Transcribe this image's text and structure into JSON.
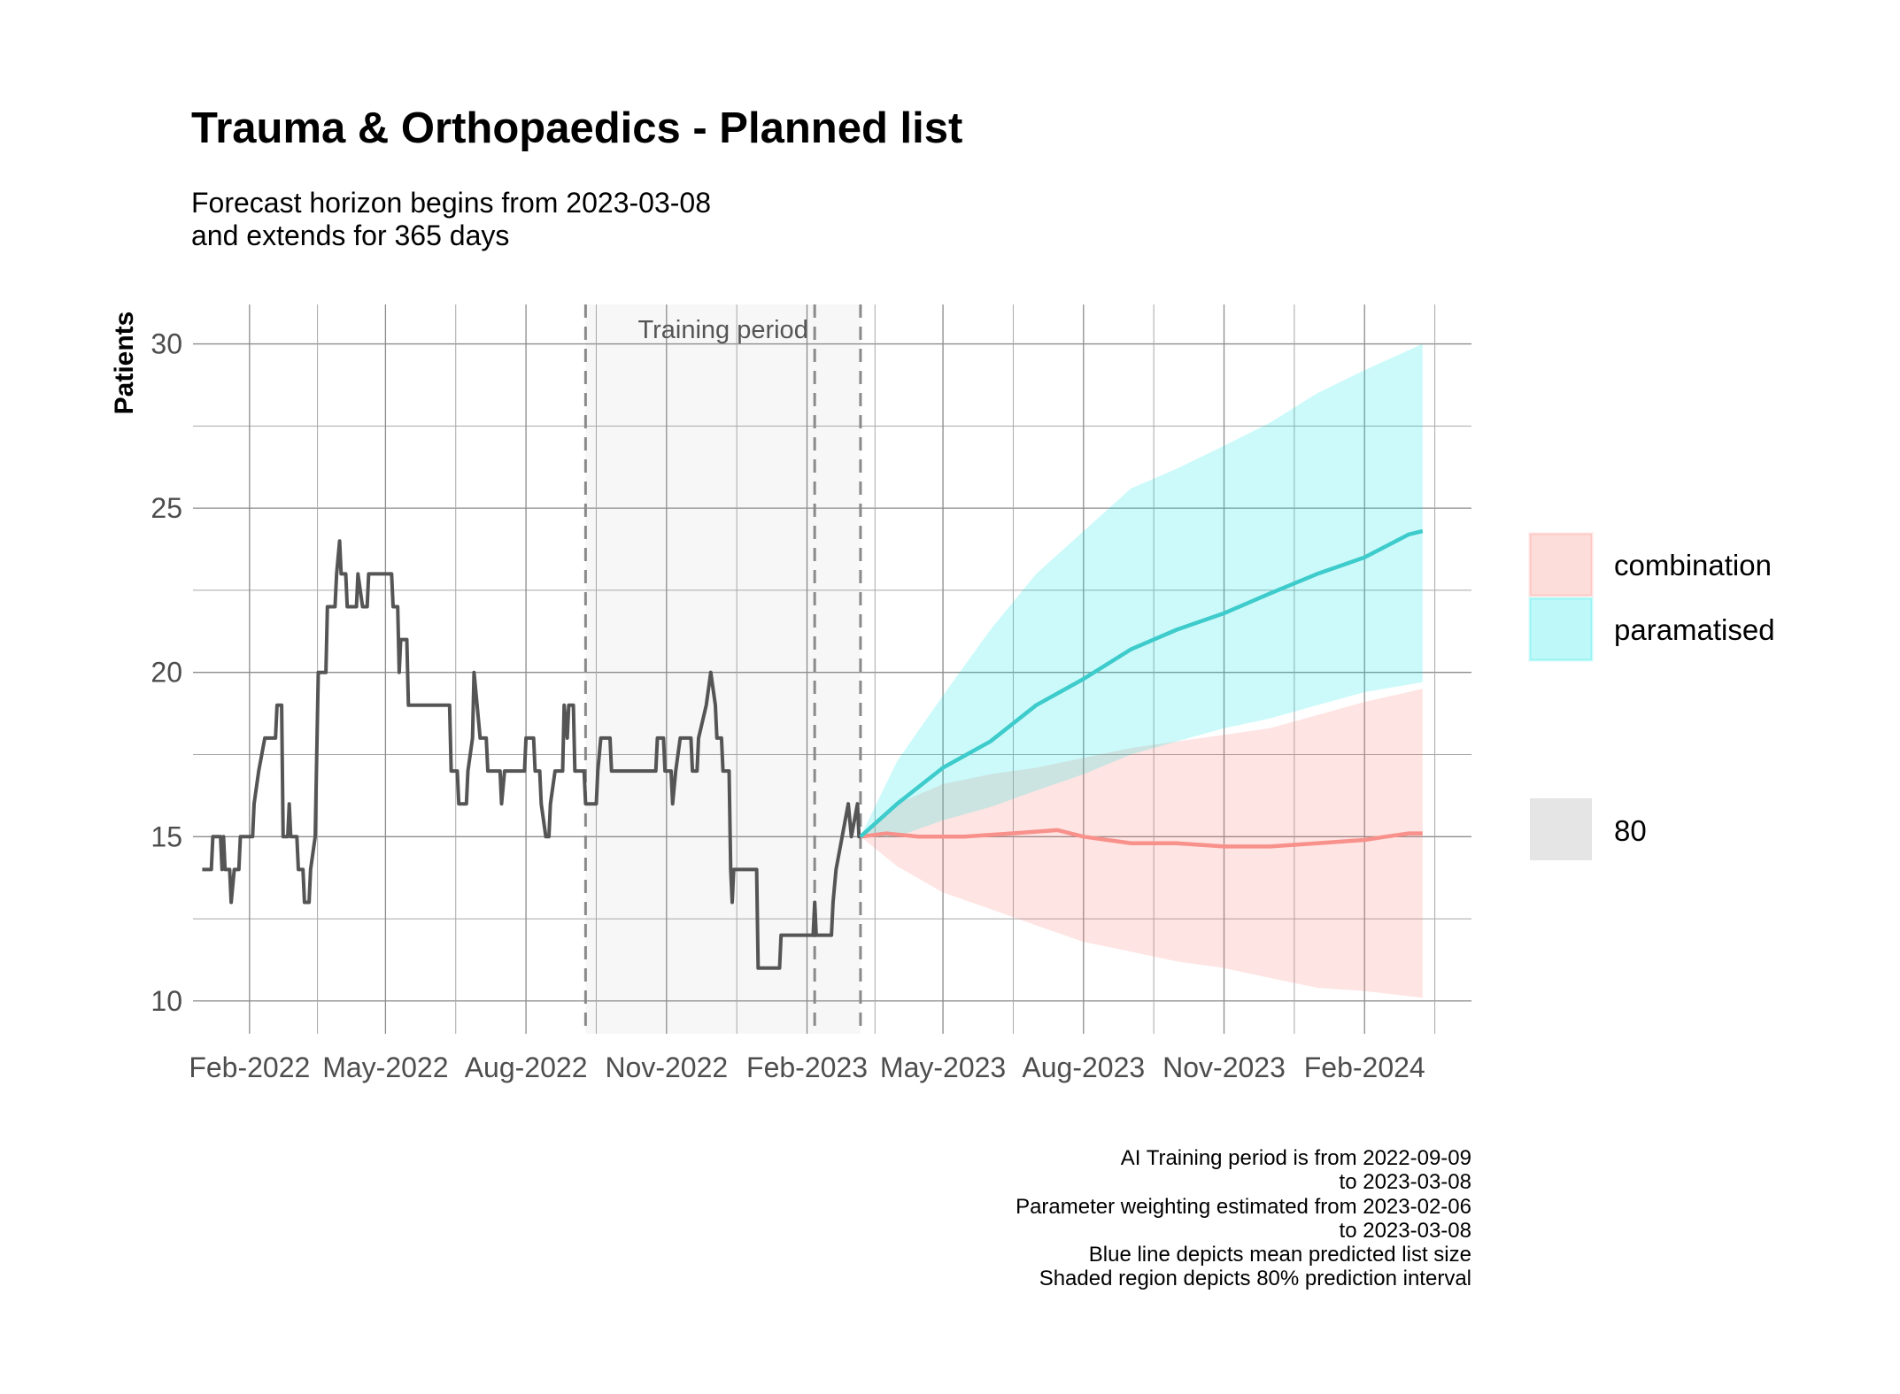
{
  "chart_data": {
    "type": "line",
    "title": "Trauma & Orthopaedics - Planned list",
    "subtitle_lines": [
      "Forecast horizon begins from 2023-03-08",
      "and extends for 365 days"
    ],
    "xlabel": "",
    "ylabel": "Patients",
    "ylim": [
      9,
      31.2
    ],
    "xlim": [
      "2021-12-26",
      "2024-04-11"
    ],
    "y_ticks": [
      10,
      15,
      20,
      25,
      30
    ],
    "x_ticks": [
      {
        "date": "2022-02-01",
        "label": "Feb-2022"
      },
      {
        "date": "2022-05-01",
        "label": "May-2022"
      },
      {
        "date": "2022-08-01",
        "label": "Aug-2022"
      },
      {
        "date": "2022-11-01",
        "label": "Nov-2022"
      },
      {
        "date": "2023-02-01",
        "label": "Feb-2023"
      },
      {
        "date": "2023-05-01",
        "label": "May-2023"
      },
      {
        "date": "2023-08-01",
        "label": "Aug-2023"
      },
      {
        "date": "2023-11-01",
        "label": "Nov-2023"
      },
      {
        "date": "2024-02-01",
        "label": "Feb-2024"
      }
    ],
    "grid": true,
    "training_period": {
      "start": "2022-09-09",
      "end": "2023-03-08",
      "label": "Training period"
    },
    "vlines": [
      "2022-09-09",
      "2023-02-06",
      "2023-03-08"
    ],
    "observed": {
      "color": "#555555",
      "points": [
        [
          "2022-01-01",
          14
        ],
        [
          "2022-01-07",
          14
        ],
        [
          "2022-01-08",
          15
        ],
        [
          "2022-01-13",
          15
        ],
        [
          "2022-01-14",
          14
        ],
        [
          "2022-01-15",
          15
        ],
        [
          "2022-01-16",
          14
        ],
        [
          "2022-01-19",
          14
        ],
        [
          "2022-01-20",
          13
        ],
        [
          "2022-01-22",
          14
        ],
        [
          "2022-01-25",
          14
        ],
        [
          "2022-01-26",
          15
        ],
        [
          "2022-02-03",
          15
        ],
        [
          "2022-02-04",
          16
        ],
        [
          "2022-02-07",
          17
        ],
        [
          "2022-02-11",
          18
        ],
        [
          "2022-02-18",
          18
        ],
        [
          "2022-02-19",
          19
        ],
        [
          "2022-02-22",
          19
        ],
        [
          "2022-02-23",
          15
        ],
        [
          "2022-02-26",
          15
        ],
        [
          "2022-02-27",
          16
        ],
        [
          "2022-02-28",
          15
        ],
        [
          "2022-03-04",
          15
        ],
        [
          "2022-03-05",
          14
        ],
        [
          "2022-03-08",
          14
        ],
        [
          "2022-03-09",
          13
        ],
        [
          "2022-03-12",
          13
        ],
        [
          "2022-03-13",
          14
        ],
        [
          "2022-03-16",
          15
        ],
        [
          "2022-03-18",
          20
        ],
        [
          "2022-03-23",
          20
        ],
        [
          "2022-03-24",
          22
        ],
        [
          "2022-03-29",
          22
        ],
        [
          "2022-03-30",
          23
        ],
        [
          "2022-04-01",
          24
        ],
        [
          "2022-04-02",
          23
        ],
        [
          "2022-04-05",
          23
        ],
        [
          "2022-04-06",
          22
        ],
        [
          "2022-04-12",
          22
        ],
        [
          "2022-04-13",
          23
        ],
        [
          "2022-04-16",
          22
        ],
        [
          "2022-04-19",
          22
        ],
        [
          "2022-04-20",
          23
        ],
        [
          "2022-05-05",
          23
        ],
        [
          "2022-05-06",
          22
        ],
        [
          "2022-05-09",
          22
        ],
        [
          "2022-05-10",
          20
        ],
        [
          "2022-05-11",
          21
        ],
        [
          "2022-05-15",
          21
        ],
        [
          "2022-05-16",
          19
        ],
        [
          "2022-06-12",
          19
        ],
        [
          "2022-06-13",
          17
        ],
        [
          "2022-06-17",
          17
        ],
        [
          "2022-06-18",
          16
        ],
        [
          "2022-06-23",
          16
        ],
        [
          "2022-06-24",
          17
        ],
        [
          "2022-06-27",
          18
        ],
        [
          "2022-06-28",
          20
        ],
        [
          "2022-06-30",
          19
        ],
        [
          "2022-07-02",
          18
        ],
        [
          "2022-07-06",
          18
        ],
        [
          "2022-07-07",
          17
        ],
        [
          "2022-07-15",
          17
        ],
        [
          "2022-07-16",
          16
        ],
        [
          "2022-07-18",
          17
        ],
        [
          "2022-07-31",
          17
        ],
        [
          "2022-08-01",
          18
        ],
        [
          "2022-08-06",
          18
        ],
        [
          "2022-08-07",
          17
        ],
        [
          "2022-08-10",
          17
        ],
        [
          "2022-08-11",
          16
        ],
        [
          "2022-08-14",
          15
        ],
        [
          "2022-08-16",
          15
        ],
        [
          "2022-08-17",
          16
        ],
        [
          "2022-08-20",
          17
        ],
        [
          "2022-08-25",
          17
        ],
        [
          "2022-08-26",
          19
        ],
        [
          "2022-08-28",
          18
        ],
        [
          "2022-08-29",
          19
        ],
        [
          "2022-09-01",
          19
        ],
        [
          "2022-09-02",
          17
        ],
        [
          "2022-09-08",
          17
        ],
        [
          "2022-09-09",
          16
        ],
        [
          "2022-09-16",
          16
        ],
        [
          "2022-09-17",
          17
        ],
        [
          "2022-09-19",
          18
        ],
        [
          "2022-09-25",
          18
        ],
        [
          "2022-09-26",
          17
        ],
        [
          "2022-10-25",
          17
        ],
        [
          "2022-10-26",
          18
        ],
        [
          "2022-10-30",
          18
        ],
        [
          "2022-10-31",
          17
        ],
        [
          "2022-11-04",
          17
        ],
        [
          "2022-11-05",
          16
        ],
        [
          "2022-11-07",
          17
        ],
        [
          "2022-11-10",
          18
        ],
        [
          "2022-11-17",
          18
        ],
        [
          "2022-11-18",
          17
        ],
        [
          "2022-11-21",
          17
        ],
        [
          "2022-11-22",
          18
        ],
        [
          "2022-11-27",
          19
        ],
        [
          "2022-11-30",
          20
        ],
        [
          "2022-12-03",
          19
        ],
        [
          "2022-12-04",
          18
        ],
        [
          "2022-12-07",
          18
        ],
        [
          "2022-12-08",
          17
        ],
        [
          "2022-12-12",
          17
        ],
        [
          "2022-12-13",
          14
        ],
        [
          "2022-12-14",
          13
        ],
        [
          "2022-12-15",
          14
        ],
        [
          "2022-12-30",
          14
        ],
        [
          "2022-12-31",
          11
        ],
        [
          "2023-01-14",
          11
        ],
        [
          "2023-01-15",
          12
        ],
        [
          "2023-02-05",
          12
        ],
        [
          "2023-02-06",
          13
        ],
        [
          "2023-02-07",
          12
        ],
        [
          "2023-02-17",
          12
        ],
        [
          "2023-02-18",
          13
        ],
        [
          "2023-02-20",
          14
        ],
        [
          "2023-02-24",
          15
        ],
        [
          "2023-02-28",
          16
        ],
        [
          "2023-03-02",
          15
        ],
        [
          "2023-03-06",
          16
        ],
        [
          "2023-03-07",
          15
        ],
        [
          "2023-03-08",
          15
        ]
      ]
    },
    "forecast_series": [
      {
        "name": "combination",
        "line_color": "#F8918B",
        "fill_color": "#F8766D",
        "mean": [
          [
            "2023-03-08",
            15.0
          ],
          [
            "2023-03-25",
            15.1
          ],
          [
            "2023-04-15",
            15.0
          ],
          [
            "2023-05-15",
            15.0
          ],
          [
            "2023-06-15",
            15.1
          ],
          [
            "2023-07-15",
            15.2
          ],
          [
            "2023-08-01",
            15.0
          ],
          [
            "2023-09-01",
            14.8
          ],
          [
            "2023-10-01",
            14.8
          ],
          [
            "2023-11-01",
            14.7
          ],
          [
            "2023-12-01",
            14.7
          ],
          [
            "2024-01-01",
            14.8
          ],
          [
            "2024-02-01",
            14.9
          ],
          [
            "2024-02-15",
            15.0
          ],
          [
            "2024-03-01",
            15.1
          ],
          [
            "2024-03-10",
            15.1
          ]
        ],
        "lower": [
          [
            "2023-03-08",
            15.0
          ],
          [
            "2023-04-01",
            14.1
          ],
          [
            "2023-05-01",
            13.3
          ],
          [
            "2023-06-01",
            12.8
          ],
          [
            "2023-07-01",
            12.3
          ],
          [
            "2023-08-01",
            11.8
          ],
          [
            "2023-09-01",
            11.5
          ],
          [
            "2023-10-01",
            11.2
          ],
          [
            "2023-11-01",
            11.0
          ],
          [
            "2023-12-01",
            10.7
          ],
          [
            "2024-01-01",
            10.4
          ],
          [
            "2024-02-01",
            10.3
          ],
          [
            "2024-03-10",
            10.1
          ]
        ],
        "upper": [
          [
            "2023-03-08",
            15.0
          ],
          [
            "2023-04-01",
            16.0
          ],
          [
            "2023-05-01",
            16.6
          ],
          [
            "2023-06-01",
            16.9
          ],
          [
            "2023-07-01",
            17.1
          ],
          [
            "2023-08-01",
            17.4
          ],
          [
            "2023-09-01",
            17.7
          ],
          [
            "2023-10-01",
            17.9
          ],
          [
            "2023-11-01",
            18.1
          ],
          [
            "2023-12-01",
            18.3
          ],
          [
            "2024-01-01",
            18.7
          ],
          [
            "2024-02-01",
            19.1
          ],
          [
            "2024-03-10",
            19.5
          ]
        ]
      },
      {
        "name": "paramatised",
        "line_color": "#3ECBCB",
        "fill_color": "#00E5E5",
        "mean": [
          [
            "2023-03-08",
            15.0
          ],
          [
            "2023-04-01",
            16.0
          ],
          [
            "2023-05-01",
            17.1
          ],
          [
            "2023-06-01",
            17.9
          ],
          [
            "2023-07-01",
            19.0
          ],
          [
            "2023-08-01",
            19.8
          ],
          [
            "2023-09-01",
            20.7
          ],
          [
            "2023-10-01",
            21.3
          ],
          [
            "2023-11-01",
            21.8
          ],
          [
            "2023-12-01",
            22.4
          ],
          [
            "2024-01-01",
            23.0
          ],
          [
            "2024-02-01",
            23.5
          ],
          [
            "2024-03-01",
            24.2
          ],
          [
            "2024-03-10",
            24.3
          ]
        ],
        "lower": [
          [
            "2023-03-08",
            15.0
          ],
          [
            "2023-04-01",
            15.0
          ],
          [
            "2023-05-01",
            15.5
          ],
          [
            "2023-06-01",
            15.9
          ],
          [
            "2023-07-01",
            16.4
          ],
          [
            "2023-08-01",
            16.9
          ],
          [
            "2023-09-01",
            17.5
          ],
          [
            "2023-10-01",
            17.9
          ],
          [
            "2023-11-01",
            18.3
          ],
          [
            "2023-12-01",
            18.6
          ],
          [
            "2024-01-01",
            19.0
          ],
          [
            "2024-02-01",
            19.4
          ],
          [
            "2024-03-10",
            19.7
          ]
        ],
        "upper": [
          [
            "2023-03-08",
            15.0
          ],
          [
            "2023-04-01",
            17.3
          ],
          [
            "2023-05-01",
            19.3
          ],
          [
            "2023-06-01",
            21.3
          ],
          [
            "2023-07-01",
            23.0
          ],
          [
            "2023-08-01",
            24.3
          ],
          [
            "2023-09-01",
            25.6
          ],
          [
            "2023-10-01",
            26.2
          ],
          [
            "2023-11-01",
            26.9
          ],
          [
            "2023-12-01",
            27.6
          ],
          [
            "2024-01-01",
            28.5
          ],
          [
            "2024-02-01",
            29.2
          ],
          [
            "2024-03-10",
            30.0
          ]
        ]
      }
    ],
    "legend": {
      "placement": "right",
      "series": [
        {
          "label": "combination",
          "color": "#F8766D"
        },
        {
          "label": "paramatised",
          "color": "#00E5E5"
        }
      ],
      "interval": {
        "label": "80",
        "color": "#E5E5E5"
      }
    },
    "caption_lines": [
      "AI Training period is from 2022-09-09",
      "to 2023-03-08",
      "Parameter weighting estimated from 2023-02-06",
      "to 2023-03-08",
      "Blue line depicts mean predicted list size",
      "Shaded region depicts 80% prediction interval"
    ]
  }
}
